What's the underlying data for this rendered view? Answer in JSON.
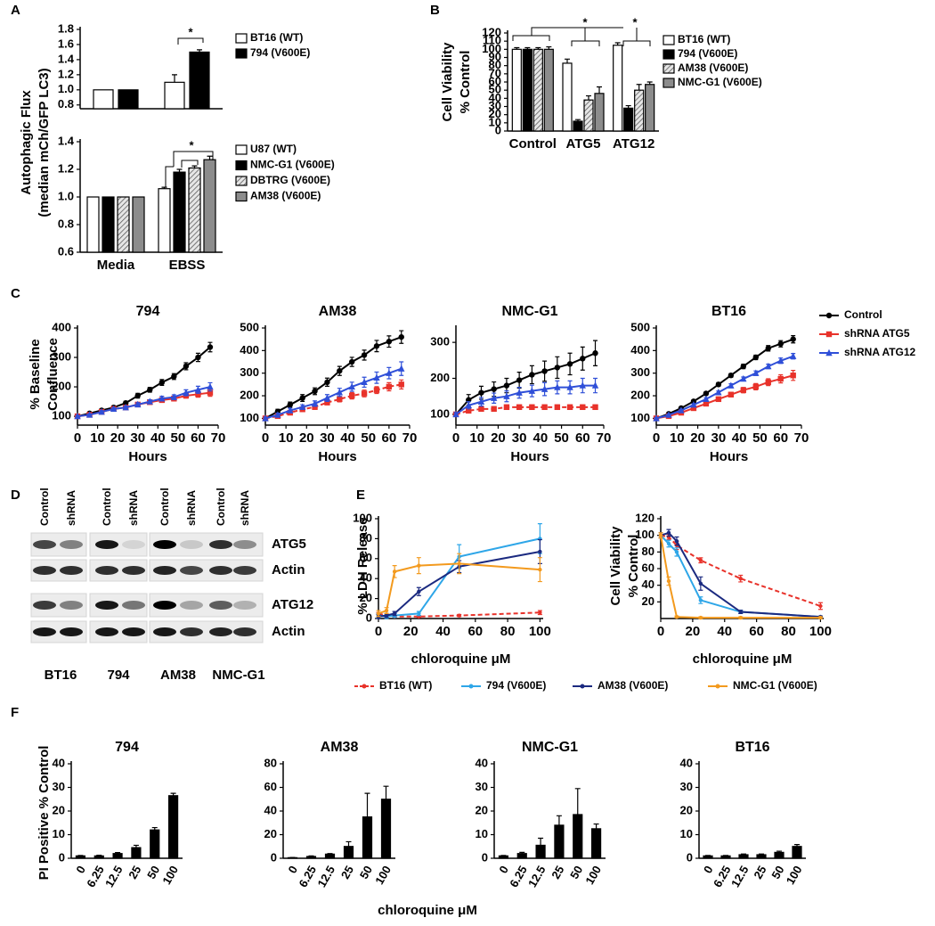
{
  "chart_data": [
    {
      "type": "bar",
      "panel": "A",
      "categories": [
        null,
        null
      ],
      "series": [
        {
          "name": "BT16 (WT)",
          "color": "#ffffff",
          "values": [
            1.0,
            1.1
          ],
          "errors": [
            null,
            0.1
          ]
        },
        {
          "name": "794 (V600E)",
          "color": "#000000",
          "values": [
            1.0,
            1.5
          ],
          "errors": [
            null,
            0.03
          ]
        }
      ],
      "ylim": [
        0.75,
        1.8
      ],
      "yticks": [
        0.8,
        {
          "value": 1,
          "label": "1.0"
        },
        1.2,
        1.4,
        1.6,
        1.8
      ],
      "annotations": [
        "*"
      ]
    },
    {
      "type": "bar",
      "categories": [
        "Media",
        "EBSS"
      ],
      "ylabel": [
        "Autophagic Flux",
        "(median mCh/GFP LC3)"
      ],
      "series": [
        {
          "name": "U87 (WT)",
          "color": "#ffffff",
          "values": [
            1.0,
            1.06
          ],
          "errors": [
            null,
            0.01
          ]
        },
        {
          "name": "NMC-G1 (V600E)",
          "color": "#000000",
          "values": [
            1.0,
            1.18
          ],
          "errors": [
            null,
            0.02
          ]
        },
        {
          "name": "DBTRG (V600E)",
          "color": "#d0d0d0",
          "pattern": "hatch",
          "values": [
            1.0,
            1.21
          ],
          "errors": [
            null,
            0.015
          ]
        },
        {
          "name": "AM38 (V600E)",
          "color": "#8c8c8c",
          "values": [
            1.0,
            1.27
          ],
          "errors": [
            null,
            0.025
          ]
        }
      ],
      "ylim": [
        0.6,
        1.4
      ],
      "yticks": [
        0.6,
        0.8,
        {
          "value": 1,
          "label": "1.0"
        },
        1.2,
        1.4
      ],
      "annotations": [
        "*"
      ]
    },
    {
      "type": "bar",
      "panel": "B",
      "categories": [
        "Control",
        "ATG5",
        "ATG12"
      ],
      "ylabel": [
        "Cell Viability",
        "% Control"
      ],
      "series": [
        {
          "name": "BT16 (WT)",
          "color": "#ffffff",
          "values": [
            100,
            83,
            105
          ],
          "errors": [
            2,
            5,
            3
          ]
        },
        {
          "name": "794 (V600E)",
          "color": "#000000",
          "values": [
            100,
            12,
            28
          ],
          "errors": [
            2,
            2,
            3
          ]
        },
        {
          "name": "AM38 (V600E)",
          "color": "#d0d0d0",
          "pattern": "hatch",
          "values": [
            100,
            38,
            50
          ],
          "errors": [
            2,
            5,
            7
          ]
        },
        {
          "name": "NMC-G1 (V600E)",
          "color": "#8c8c8c",
          "values": [
            100,
            46,
            57
          ],
          "errors": [
            3,
            8,
            3
          ]
        }
      ],
      "ylim": [
        0,
        120
      ],
      "yticks": [
        0,
        10,
        20,
        30,
        40,
        50,
        60,
        70,
        80,
        90,
        100,
        110,
        120
      ],
      "annotations": [
        "*",
        "*"
      ]
    },
    {
      "type": "line",
      "panel": "C",
      "title": "794",
      "xlabel": "Hours",
      "ylabel": [
        "% Baseline",
        "Confluence"
      ],
      "x": [
        0,
        6,
        12,
        18,
        24,
        30,
        36,
        42,
        48,
        54,
        60,
        66
      ],
      "xlim": [
        0,
        70
      ],
      "xticks": [
        0,
        10,
        20,
        30,
        40,
        50,
        60,
        70
      ],
      "ylim": [
        70,
        400
      ],
      "yticks": [
        100,
        200,
        300,
        400
      ],
      "series": [
        {
          "color": "#000000",
          "marker": "circle",
          "values": [
            100,
            110,
            120,
            130,
            145,
            170,
            190,
            215,
            235,
            270,
            300,
            335
          ],
          "errors": [
            3,
            4,
            5,
            5,
            6,
            8,
            8,
            10,
            10,
            12,
            14,
            16
          ]
        },
        {
          "color": "#e8322a",
          "marker": "square",
          "values": [
            100,
            105,
            115,
            125,
            130,
            140,
            148,
            155,
            160,
            170,
            175,
            180
          ],
          "errors": [
            3,
            3,
            4,
            4,
            5,
            5,
            6,
            6,
            8,
            8,
            10,
            12
          ]
        },
        {
          "color": "#2f4fd8",
          "marker": "triangle",
          "values": [
            100,
            105,
            115,
            125,
            130,
            140,
            150,
            160,
            165,
            180,
            190,
            200
          ],
          "errors": [
            3,
            3,
            4,
            4,
            5,
            6,
            6,
            8,
            8,
            10,
            12,
            14
          ]
        }
      ]
    },
    {
      "type": "line",
      "title": "AM38",
      "xlabel": "Hours",
      "x": [
        0,
        6,
        12,
        18,
        24,
        30,
        36,
        42,
        48,
        54,
        60,
        66
      ],
      "xlim": [
        0,
        70
      ],
      "xticks": [
        0,
        10,
        20,
        30,
        40,
        50,
        60,
        70
      ],
      "ylim": [
        70,
        500
      ],
      "yticks": [
        100,
        200,
        300,
        400,
        500
      ],
      "series": [
        {
          "color": "#000000",
          "marker": "circle",
          "values": [
            100,
            130,
            160,
            190,
            220,
            260,
            310,
            350,
            380,
            420,
            440,
            460
          ],
          "errors": [
            5,
            10,
            12,
            15,
            15,
            18,
            20,
            20,
            22,
            25,
            25,
            28
          ]
        },
        {
          "color": "#e8322a",
          "marker": "square",
          "dash": true,
          "values": [
            100,
            110,
            125,
            140,
            150,
            170,
            185,
            200,
            210,
            225,
            240,
            250
          ],
          "errors": [
            5,
            6,
            8,
            8,
            10,
            10,
            12,
            14,
            15,
            15,
            18,
            20
          ]
        },
        {
          "color": "#2f4fd8",
          "marker": "triangle",
          "values": [
            100,
            115,
            135,
            150,
            165,
            190,
            215,
            240,
            260,
            280,
            300,
            320
          ],
          "errors": [
            5,
            8,
            10,
            10,
            12,
            15,
            18,
            20,
            22,
            25,
            25,
            30
          ]
        }
      ]
    },
    {
      "type": "line",
      "title": "NMC-G1",
      "xlabel": "Hours",
      "x": [
        0,
        6,
        12,
        18,
        24,
        30,
        36,
        42,
        48,
        54,
        60,
        66
      ],
      "xlim": [
        0,
        70
      ],
      "xticks": [
        0,
        10,
        20,
        30,
        40,
        50,
        60,
        70
      ],
      "ylim": [
        70,
        340
      ],
      "yticks": [
        100,
        200,
        300
      ],
      "series": [
        {
          "color": "#000000",
          "marker": "circle",
          "values": [
            100,
            140,
            160,
            170,
            180,
            195,
            210,
            220,
            230,
            240,
            255,
            270
          ],
          "errors": [
            5,
            15,
            18,
            20,
            20,
            22,
            25,
            28,
            30,
            30,
            32,
            35
          ]
        },
        {
          "color": "#e8322a",
          "marker": "square",
          "dash": true,
          "values": [
            100,
            110,
            115,
            115,
            120,
            120,
            120,
            120,
            120,
            120,
            120,
            120
          ],
          "errors": [
            4,
            6,
            6,
            6,
            6,
            6,
            6,
            6,
            6,
            6,
            6,
            6
          ]
        },
        {
          "color": "#2f4fd8",
          "marker": "triangle",
          "values": [
            100,
            125,
            135,
            145,
            150,
            160,
            165,
            170,
            175,
            175,
            180,
            180
          ],
          "errors": [
            5,
            10,
            12,
            14,
            15,
            15,
            16,
            18,
            18,
            18,
            20,
            20
          ]
        }
      ]
    },
    {
      "type": "line",
      "title": "BT16",
      "xlabel": "Hours",
      "x": [
        0,
        6,
        12,
        18,
        24,
        30,
        36,
        42,
        48,
        54,
        60,
        66
      ],
      "xlim": [
        0,
        70
      ],
      "xticks": [
        0,
        10,
        20,
        30,
        40,
        50,
        60,
        70
      ],
      "ylim": [
        70,
        500
      ],
      "yticks": [
        100,
        200,
        300,
        400,
        500
      ],
      "series": [
        {
          "name": "Control",
          "color": "#000000",
          "marker": "circle",
          "values": [
            100,
            120,
            145,
            175,
            210,
            250,
            290,
            330,
            370,
            410,
            430,
            450
          ],
          "errors": [
            3,
            4,
            5,
            6,
            7,
            8,
            8,
            10,
            10,
            12,
            14,
            16
          ]
        },
        {
          "name": "shRNA ATG5",
          "color": "#e8322a",
          "marker": "square",
          "values": [
            100,
            110,
            125,
            145,
            165,
            185,
            205,
            225,
            240,
            260,
            275,
            290
          ],
          "errors": [
            3,
            4,
            5,
            6,
            7,
            8,
            10,
            12,
            14,
            15,
            18,
            22
          ]
        },
        {
          "name": "shRNA ATG12",
          "color": "#2f4fd8",
          "marker": "triangle",
          "values": [
            100,
            115,
            135,
            160,
            185,
            215,
            245,
            275,
            300,
            330,
            355,
            375
          ],
          "errors": [
            3,
            4,
            5,
            5,
            6,
            6,
            8,
            8,
            10,
            10,
            12,
            12
          ]
        }
      ]
    },
    {
      "type": "line",
      "panel": "E",
      "xlabel": "chloroquine μM",
      "ylabel": "% LDH Release",
      "x": [
        0,
        5,
        10,
        25,
        50,
        100
      ],
      "xlim": [
        0,
        102
      ],
      "xticks": [
        0,
        20,
        40,
        60,
        80,
        100
      ],
      "ylim": [
        0,
        100
      ],
      "yticks": [
        0,
        20,
        40,
        60,
        80,
        100
      ],
      "series": [
        {
          "name": "BT16 (WT)",
          "color": "#e8322a",
          "dash": true,
          "values": [
            5,
            3,
            2,
            2,
            3,
            6
          ],
          "errors": [
            1,
            1,
            1,
            1,
            1,
            2
          ]
        },
        {
          "name": "794 (V600E)",
          "color": "#2ea6e8",
          "values": [
            3,
            2,
            3,
            5,
            62,
            80
          ],
          "errors": [
            2,
            2,
            2,
            2,
            12,
            15
          ]
        },
        {
          "name": "AM38 (V600E)",
          "color": "#1b2a80",
          "values": [
            2,
            3,
            5,
            27,
            52,
            67
          ],
          "errors": [
            2,
            2,
            2,
            4,
            6,
            12
          ]
        },
        {
          "name": "NMC-G1 (V600E)",
          "color": "#f39a1e",
          "values": [
            5,
            8,
            47,
            53,
            55,
            49
          ],
          "errors": [
            3,
            3,
            6,
            8,
            10,
            12
          ]
        }
      ]
    },
    {
      "type": "line",
      "xlabel": "chloroquine μM",
      "ylabel": [
        "Cell Viability",
        "% Control"
      ],
      "x": [
        0,
        5,
        10,
        25,
        50,
        100
      ],
      "xlim": [
        0,
        102
      ],
      "xticks": [
        0,
        20,
        40,
        60,
        80,
        100
      ],
      "ylim": [
        0,
        120
      ],
      "yticks": [
        20,
        40,
        60,
        80,
        100,
        120
      ],
      "series": [
        {
          "color": "#e8322a",
          "dash": true,
          "values": [
            100,
            98,
            88,
            70,
            48,
            15
          ],
          "errors": [
            3,
            3,
            5,
            3,
            4,
            4
          ]
        },
        {
          "color": "#2ea6e8",
          "values": [
            100,
            90,
            80,
            22,
            8,
            2
          ],
          "errors": [
            3,
            4,
            5,
            4,
            2,
            1
          ]
        },
        {
          "color": "#1b2a80",
          "values": [
            100,
            103,
            93,
            42,
            8,
            2
          ],
          "errors": [
            3,
            4,
            5,
            8,
            2,
            1
          ]
        },
        {
          "color": "#f39a1e",
          "values": [
            100,
            45,
            2,
            1,
            1,
            1
          ],
          "errors": [
            3,
            5,
            1,
            1,
            1,
            1
          ]
        }
      ]
    },
    {
      "type": "bar",
      "panel": "F",
      "title": "794",
      "ylabel": "PI Positive % Control",
      "xlabel": "chloroquine μM",
      "categories": [
        "0",
        "6.25",
        "12.5",
        "25",
        "50",
        "100"
      ],
      "ylim": [
        0,
        40
      ],
      "yticks": [
        0,
        10,
        20,
        30,
        40
      ],
      "series": [
        {
          "color": "#000000",
          "values": [
            1,
            1,
            2,
            4.5,
            12,
            26.5
          ],
          "errors": [
            0.2,
            0.3,
            0.4,
            1,
            1,
            1
          ]
        }
      ]
    },
    {
      "type": "bar",
      "title": "AM38",
      "categories": [
        "0",
        "6.25",
        "12.5",
        "25",
        "50",
        "100"
      ],
      "ylim": [
        0,
        80
      ],
      "yticks": [
        0,
        20,
        40,
        60,
        80
      ],
      "series": [
        {
          "color": "#000000",
          "values": [
            0.5,
            1.5,
            3.5,
            10,
            35,
            50
          ],
          "errors": [
            0.2,
            0.5,
            0.5,
            4,
            20,
            11
          ]
        }
      ]
    },
    {
      "type": "bar",
      "title": "NMC-G1",
      "categories": [
        "0",
        "6.25",
        "12.5",
        "25",
        "50",
        "100"
      ],
      "ylim": [
        0,
        40
      ],
      "yticks": [
        0,
        10,
        20,
        30,
        40
      ],
      "series": [
        {
          "color": "#000000",
          "values": [
            1,
            2,
            5.5,
            14,
            18.5,
            12.5
          ],
          "errors": [
            0.2,
            0.5,
            3,
            4,
            11,
            2
          ]
        }
      ]
    },
    {
      "type": "bar",
      "title": "BT16",
      "categories": [
        "0",
        "6.25",
        "12.5",
        "25",
        "50",
        "100"
      ],
      "ylim": [
        0,
        40
      ],
      "yticks": [
        0,
        10,
        20,
        30,
        40
      ],
      "series": [
        {
          "color": "#000000",
          "values": [
            1,
            1,
            1.5,
            1.5,
            2.5,
            5
          ],
          "errors": [
            0.2,
            0.2,
            0.3,
            0.3,
            0.5,
            0.8
          ]
        }
      ]
    }
  ],
  "panel_d": {
    "label": "D",
    "lanes": [
      "Control",
      "shRNA",
      "Control",
      "shRNA",
      "Control",
      "shRNA",
      "Control",
      "shRNA"
    ],
    "proteins": [
      "ATG5",
      "Actin",
      "ATG12",
      "Actin"
    ],
    "cell_lines": [
      "BT16",
      "794",
      "AM38",
      "NMC-G1"
    ]
  }
}
